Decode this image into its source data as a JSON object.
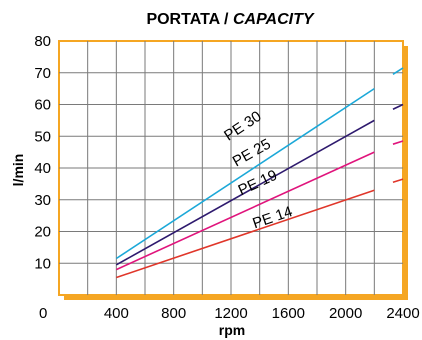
{
  "chart_data": {
    "type": "line",
    "title": "PORTATA / ",
    "title_italic": "CAPACITY",
    "xlabel": "rpm",
    "ylabel": "l/min",
    "xlim": [
      0,
      2400
    ],
    "ylim": [
      0,
      80
    ],
    "x_ticks": [
      0,
      400,
      800,
      1200,
      1600,
      2000,
      2400
    ],
    "x_tick_labels": [
      "0",
      "400",
      "800",
      "1200",
      "1600",
      "2000",
      "2400"
    ],
    "y_ticks": [
      10,
      20,
      30,
      40,
      50,
      60,
      70,
      80
    ],
    "y_tick_labels": [
      "10",
      "20",
      "30",
      "40",
      "50",
      "60",
      "70",
      "80"
    ],
    "grid": true,
    "frame_color": "#f5a623",
    "series": [
      {
        "name": "PE 30",
        "color": "#1ba8d8",
        "x": [
          400,
          2200
        ],
        "values": [
          11.5,
          65
        ],
        "ext_x": [
          2330,
          2400
        ],
        "ext_values": [
          69.5,
          71.5
        ]
      },
      {
        "name": "PE 25",
        "color": "#2e1a6e",
        "x": [
          400,
          2200
        ],
        "values": [
          9.5,
          55
        ],
        "ext_x": [
          2330,
          2400
        ],
        "ext_values": [
          58.5,
          60
        ]
      },
      {
        "name": "PE 19",
        "color": "#e0147c",
        "x": [
          400,
          2200
        ],
        "values": [
          8,
          45
        ],
        "ext_x": [
          2330,
          2400
        ],
        "ext_values": [
          47.5,
          48.5
        ]
      },
      {
        "name": "PE 14",
        "color": "#e0362a",
        "x": [
          400,
          2200
        ],
        "values": [
          5.5,
          33
        ],
        "ext_x": [
          2330,
          2400
        ],
        "ext_values": [
          35.5,
          36.5
        ]
      }
    ]
  }
}
